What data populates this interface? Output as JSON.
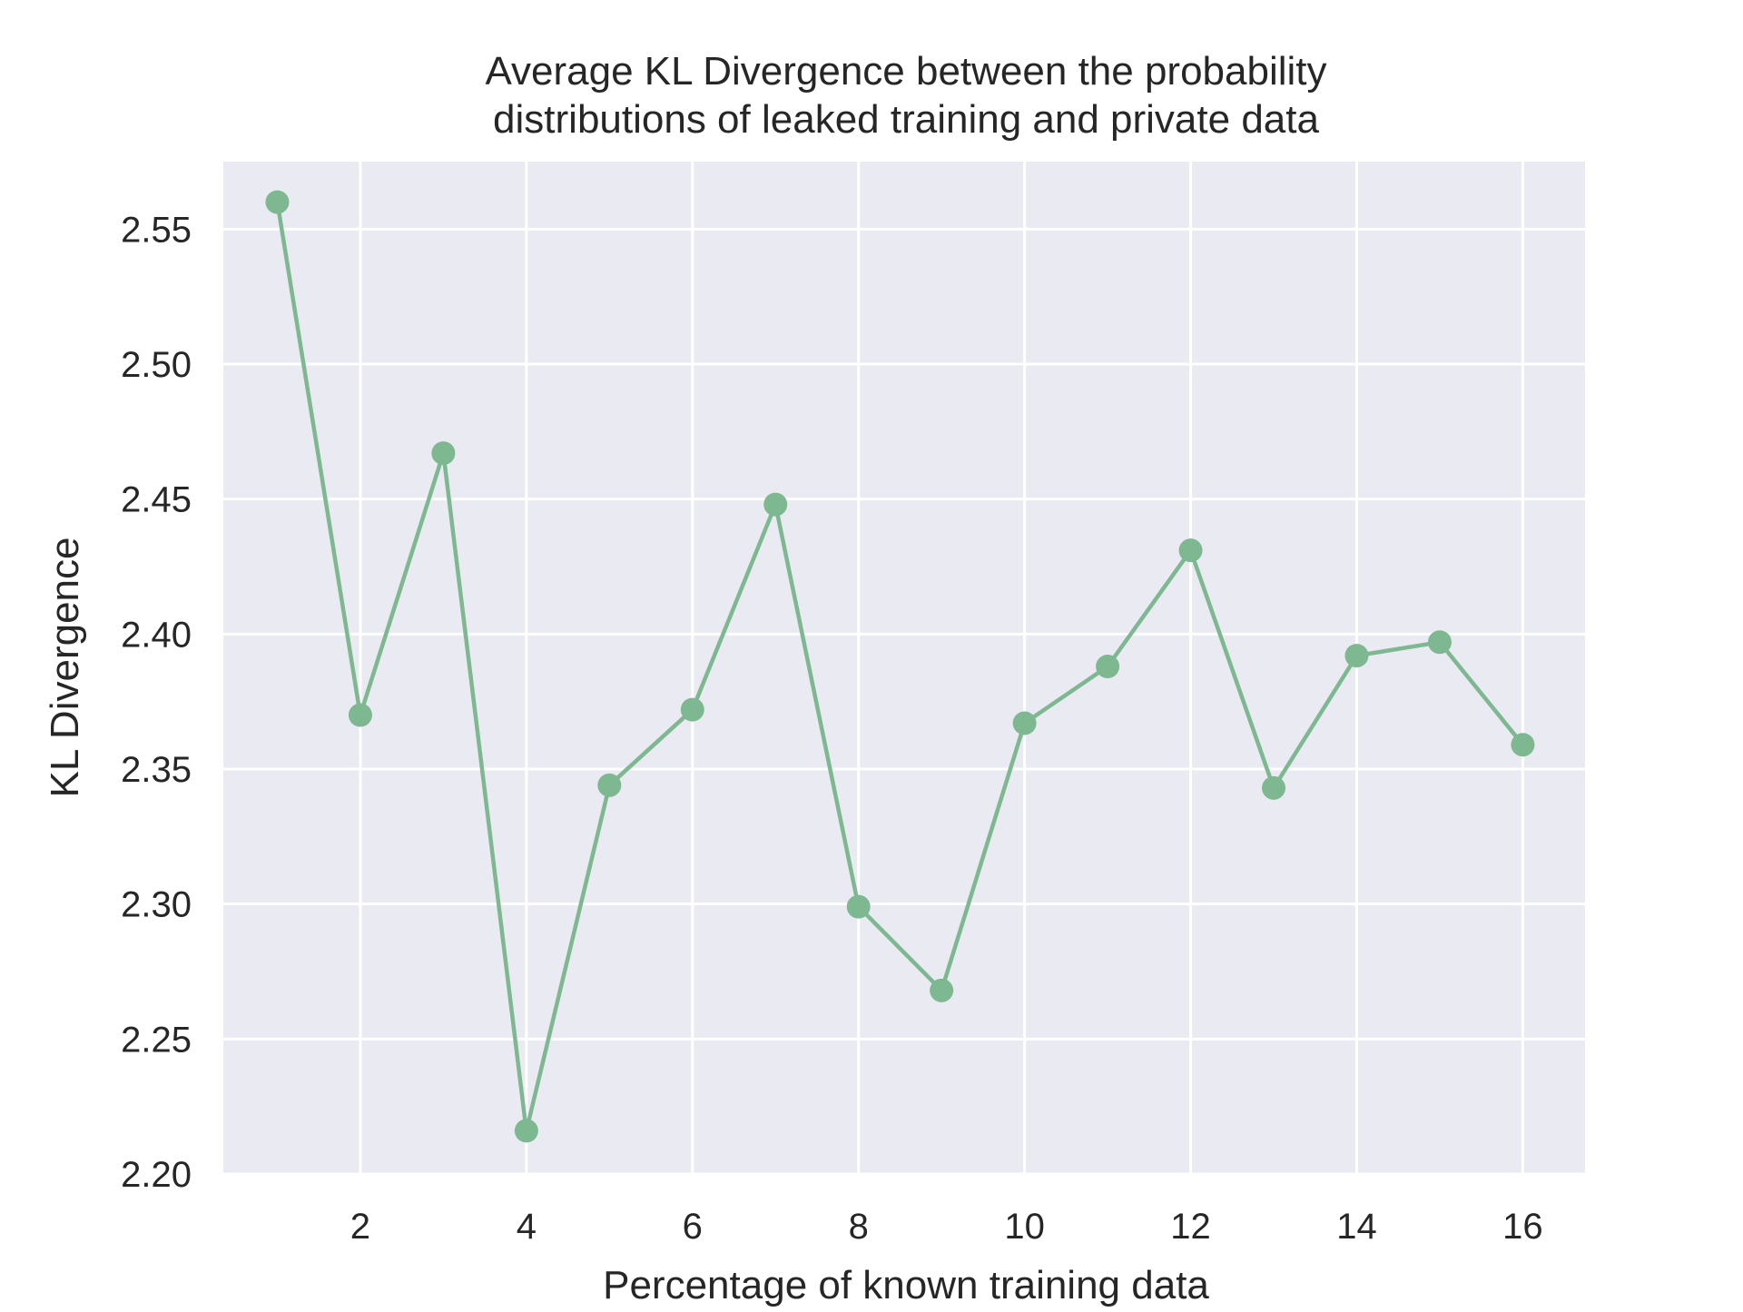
{
  "chart_data": {
    "type": "line",
    "title_lines": [
      "Average KL Divergence between the probability",
      "distributions of leaked training and private data"
    ],
    "xlabel": "Percentage of known training data",
    "ylabel": "KL Divergence",
    "x": [
      1,
      2,
      3,
      4,
      5,
      6,
      7,
      8,
      9,
      10,
      11,
      12,
      13,
      14,
      15,
      16
    ],
    "series": [
      {
        "values": [
          2.56,
          2.37,
          2.467,
          2.216,
          2.344,
          2.372,
          2.448,
          2.299,
          2.268,
          2.367,
          2.388,
          2.431,
          2.343,
          2.392,
          2.397,
          2.359
        ],
        "color": "#7db891"
      }
    ],
    "xlim": [
      0.35,
      16.75
    ],
    "ylim": [
      2.2,
      2.575
    ],
    "xticks": [
      2,
      4,
      6,
      8,
      10,
      12,
      14,
      16
    ],
    "xtick_labels": [
      "2",
      "4",
      "6",
      "8",
      "10",
      "12",
      "14",
      "16"
    ],
    "yticks": [
      2.2,
      2.25,
      2.3,
      2.35,
      2.4,
      2.45,
      2.5,
      2.55
    ],
    "ytick_labels": [
      "2.20",
      "2.25",
      "2.30",
      "2.35",
      "2.40",
      "2.45",
      "2.50",
      "2.55"
    ],
    "grid": true,
    "background_color": "#eaeaf2",
    "grid_color": "#ffffff"
  }
}
